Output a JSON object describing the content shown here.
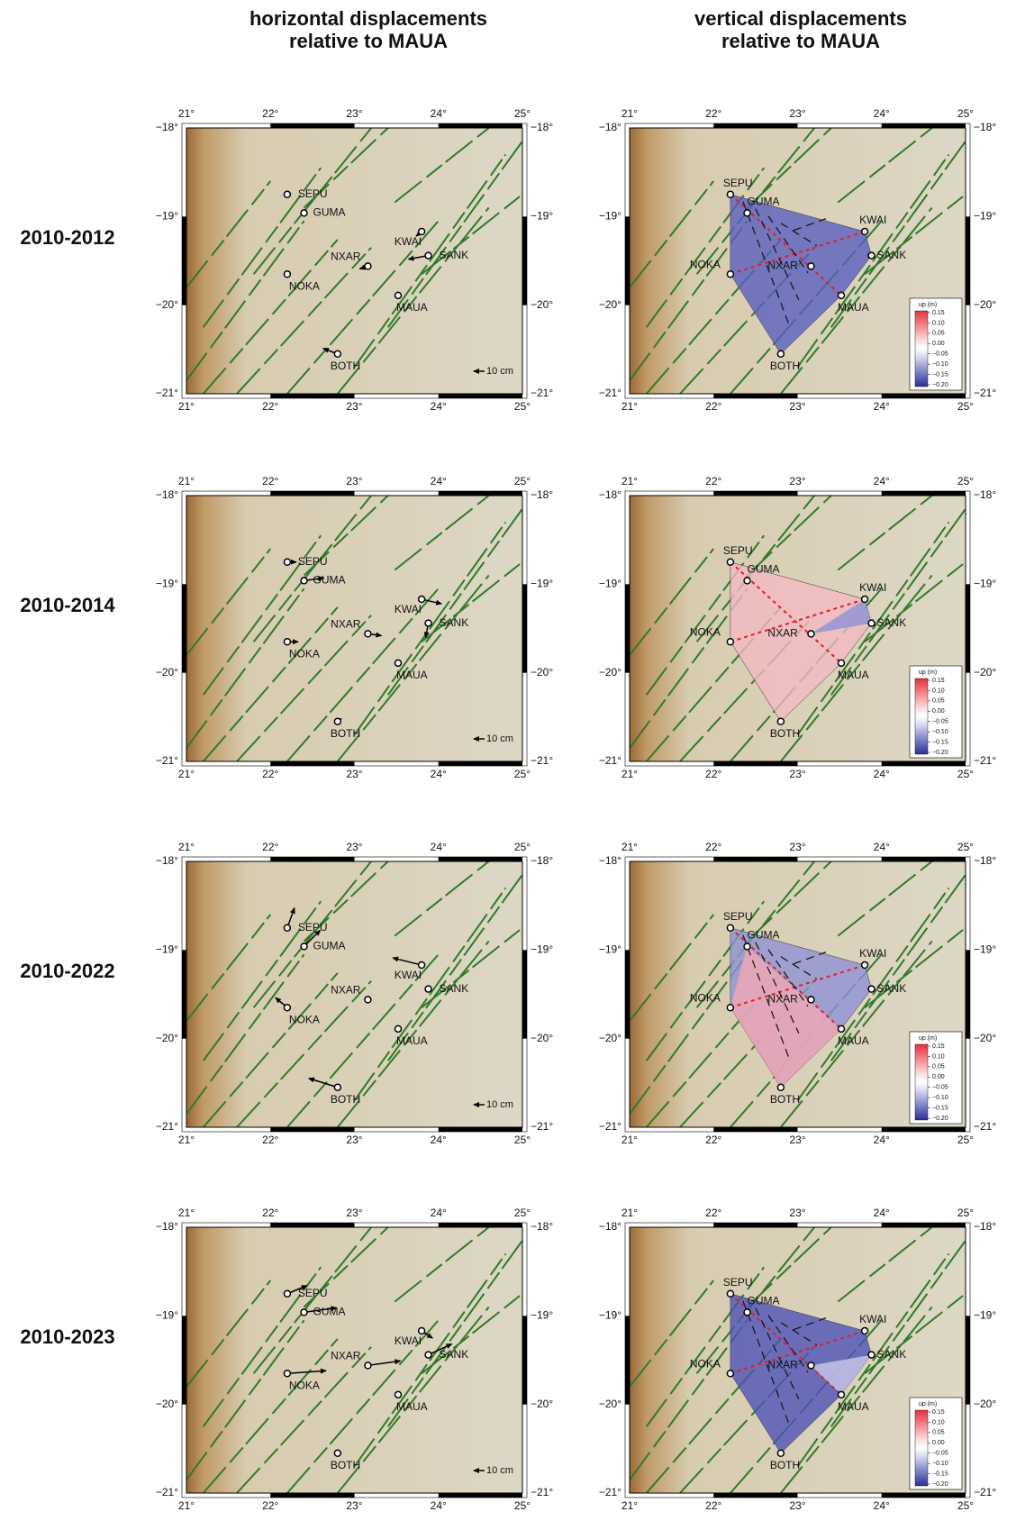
{
  "columns": [
    [
      "horizontal displacements",
      "relative to MAUA"
    ],
    [
      "vertical displacements",
      "relative to MAUA"
    ]
  ],
  "rows": [
    "2010-2012",
    "2010-2014",
    "2010-2022",
    "2010-2023"
  ],
  "map": {
    "lon_ticks": [
      "21°",
      "22°",
      "23°",
      "24°",
      "25°"
    ],
    "lat_ticks": [
      "−18°",
      "−19°",
      "−20°",
      "−21°"
    ],
    "stations": [
      "SEPU",
      "GUMA",
      "KWAI",
      "SANK",
      "NXAR",
      "NOKA",
      "MAUA",
      "BOTH"
    ],
    "scale_label": "10 cm"
  },
  "colorbar": {
    "title": "up (m)",
    "ticks": [
      "0.15",
      "0.10",
      "0.05",
      "0.00",
      "−0.05",
      "−0.10",
      "−0.15",
      "−0.20"
    ]
  }
}
